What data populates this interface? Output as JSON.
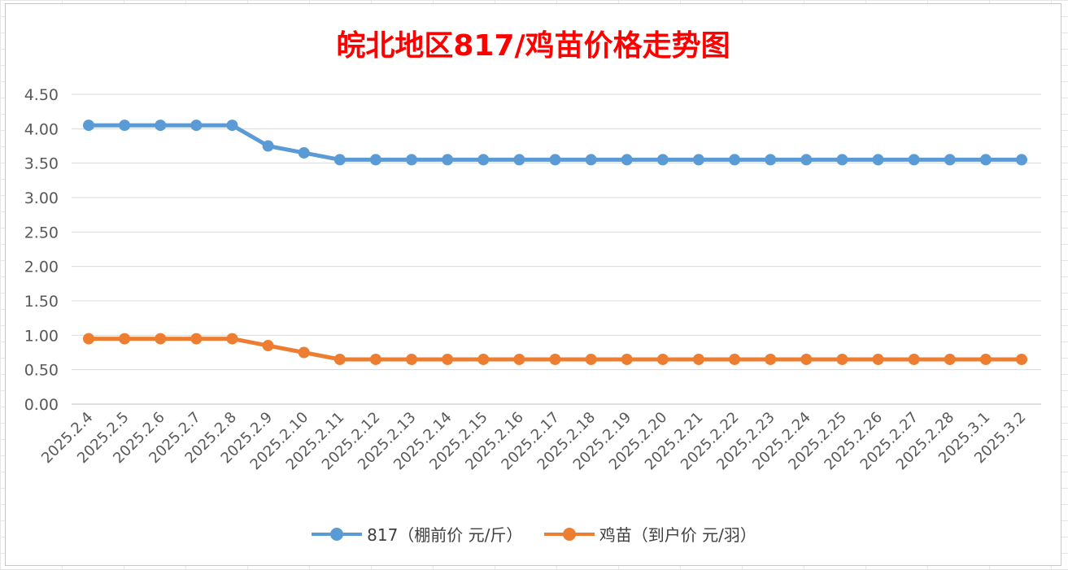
{
  "chart_data": {
    "type": "line",
    "title": "皖北地区817/鸡苗价格走势图",
    "title_color": "#ff0000",
    "xlabel": "",
    "ylabel": "",
    "ylim": [
      0,
      4.5
    ],
    "yticks": [
      "0.00",
      "0.50",
      "1.00",
      "1.50",
      "2.00",
      "2.50",
      "3.00",
      "3.50",
      "4.00",
      "4.50"
    ],
    "grid": true,
    "legend_position": "bottom",
    "categories": [
      "2025.2.4",
      "2025.2.5",
      "2025.2.6",
      "2025.2.7",
      "2025.2.8",
      "2025.2.9",
      "2025.2.10",
      "2025.2.11",
      "2025.2.12",
      "2025.2.13",
      "2025.2.14",
      "2025.2.15",
      "2025.2.16",
      "2025.2.17",
      "2025.2.18",
      "2025.2.19",
      "2025.2.20",
      "2025.2.21",
      "2025.2.22",
      "2025.2.23",
      "2025.2.24",
      "2025.2.25",
      "2025.2.26",
      "2025.2.27",
      "2025.2.28",
      "2025.3.1",
      "2025.3.2"
    ],
    "series": [
      {
        "name": "817（棚前价 元/斤）",
        "color": "#5b9bd5",
        "values": [
          4.05,
          4.05,
          4.05,
          4.05,
          4.05,
          3.75,
          3.65,
          3.55,
          3.55,
          3.55,
          3.55,
          3.55,
          3.55,
          3.55,
          3.55,
          3.55,
          3.55,
          3.55,
          3.55,
          3.55,
          3.55,
          3.55,
          3.55,
          3.55,
          3.55,
          3.55,
          3.55
        ]
      },
      {
        "name": "鸡苗（到户价 元/羽）",
        "color": "#ed7d31",
        "values": [
          0.95,
          0.95,
          0.95,
          0.95,
          0.95,
          0.85,
          0.75,
          0.65,
          0.65,
          0.65,
          0.65,
          0.65,
          0.65,
          0.65,
          0.65,
          0.65,
          0.65,
          0.65,
          0.65,
          0.65,
          0.65,
          0.65,
          0.65,
          0.65,
          0.65,
          0.65,
          0.65
        ]
      }
    ]
  }
}
